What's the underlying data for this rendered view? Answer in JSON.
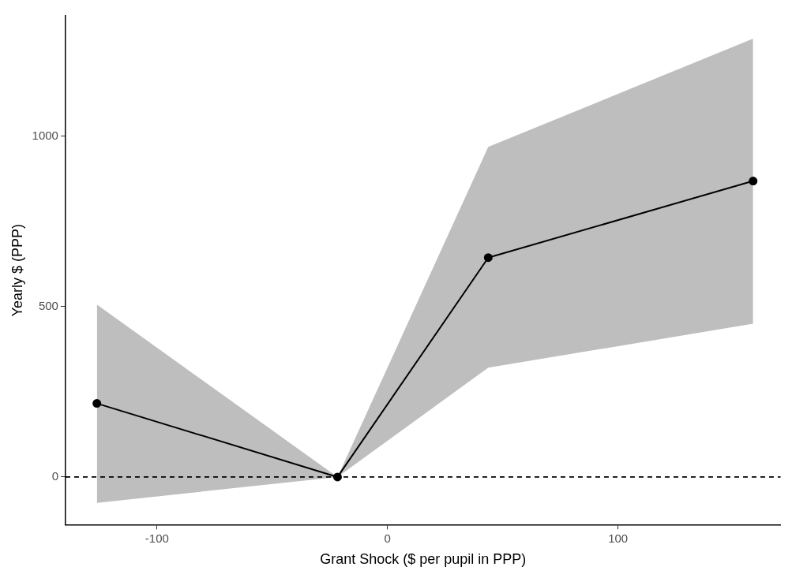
{
  "chart_data": {
    "type": "line",
    "xlabel": "Grant Shock ($ per pupil in PPP)",
    "ylabel": "Yearly $ (PPP)",
    "x": [
      -126.1,
      -21.7,
      43.7,
      158.6
    ],
    "series": [
      {
        "color": "#000000",
        "values": [
          216,
          0,
          644,
          869
        ],
        "lower": [
          -76,
          0,
          321,
          450
        ],
        "upper": [
          506,
          0,
          969,
          1287
        ]
      }
    ],
    "xlim": [
      -139.7,
      170.5
    ],
    "xticks": [
      -100,
      0,
      100
    ],
    "ylim": [
      -140,
      1354
    ],
    "yticks": [
      0,
      500,
      1000
    ],
    "ref_lines": [
      {
        "axis": "y",
        "value": 0,
        "line_style": "dashed",
        "color": "#000000"
      }
    ],
    "grid": false,
    "legend": false,
    "marker": "circle",
    "line_style": "solid"
  }
}
